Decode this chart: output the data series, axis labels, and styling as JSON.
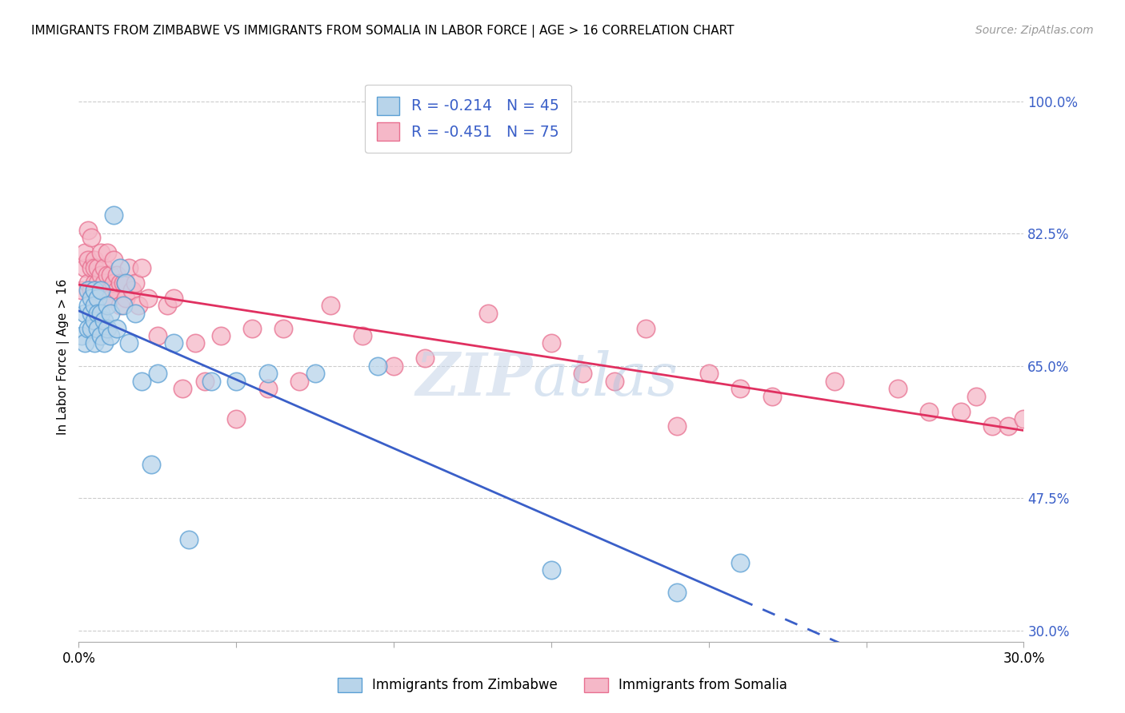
{
  "title": "IMMIGRANTS FROM ZIMBABWE VS IMMIGRANTS FROM SOMALIA IN LABOR FORCE | AGE > 16 CORRELATION CHART",
  "source": "Source: ZipAtlas.com",
  "ylabel": "In Labor Force | Age > 16",
  "xlim": [
    0.0,
    0.3
  ],
  "ylim": [
    0.285,
    1.04
  ],
  "yticks": [
    1.0,
    0.825,
    0.65,
    0.475,
    0.3
  ],
  "ytick_labels": [
    "100.0%",
    "82.5%",
    "65.0%",
    "47.5%",
    "30.0%"
  ],
  "xticks": [
    0.0,
    0.05,
    0.1,
    0.15,
    0.2,
    0.25,
    0.3
  ],
  "xtick_labels": [
    "0.0%",
    "",
    "",
    "",
    "",
    "",
    "30.0%"
  ],
  "zimbabwe_fill": "#b8d4ea",
  "zimbabwe_edge": "#5a9fd4",
  "somalia_fill": "#f5b8c8",
  "somalia_edge": "#e87090",
  "reg_blue": "#3a5fc8",
  "reg_pink": "#e03060",
  "R_zimbabwe": -0.214,
  "N_zimbabwe": 45,
  "R_somalia": -0.451,
  "N_somalia": 75,
  "watermark_zip": "ZIP",
  "watermark_atlas": "atlas",
  "zimbabwe_x": [
    0.001,
    0.002,
    0.002,
    0.003,
    0.003,
    0.003,
    0.004,
    0.004,
    0.004,
    0.005,
    0.005,
    0.005,
    0.005,
    0.006,
    0.006,
    0.006,
    0.007,
    0.007,
    0.007,
    0.008,
    0.008,
    0.009,
    0.009,
    0.01,
    0.01,
    0.011,
    0.012,
    0.013,
    0.014,
    0.015,
    0.016,
    0.018,
    0.02,
    0.023,
    0.025,
    0.03,
    0.035,
    0.042,
    0.05,
    0.06,
    0.075,
    0.095,
    0.15,
    0.19,
    0.21
  ],
  "zimbabwe_y": [
    0.69,
    0.72,
    0.68,
    0.75,
    0.73,
    0.7,
    0.74,
    0.72,
    0.7,
    0.75,
    0.73,
    0.71,
    0.68,
    0.74,
    0.72,
    0.7,
    0.75,
    0.72,
    0.69,
    0.71,
    0.68,
    0.73,
    0.7,
    0.72,
    0.69,
    0.85,
    0.7,
    0.78,
    0.73,
    0.76,
    0.68,
    0.72,
    0.63,
    0.52,
    0.64,
    0.68,
    0.42,
    0.63,
    0.63,
    0.64,
    0.64,
    0.65,
    0.38,
    0.35,
    0.39
  ],
  "somalia_x": [
    0.001,
    0.002,
    0.002,
    0.003,
    0.003,
    0.003,
    0.004,
    0.004,
    0.004,
    0.005,
    0.005,
    0.005,
    0.005,
    0.006,
    0.006,
    0.006,
    0.007,
    0.007,
    0.007,
    0.008,
    0.008,
    0.008,
    0.009,
    0.009,
    0.01,
    0.01,
    0.01,
    0.011,
    0.011,
    0.012,
    0.012,
    0.013,
    0.013,
    0.014,
    0.015,
    0.015,
    0.016,
    0.017,
    0.018,
    0.019,
    0.02,
    0.022,
    0.025,
    0.028,
    0.03,
    0.033,
    0.037,
    0.04,
    0.045,
    0.05,
    0.055,
    0.06,
    0.065,
    0.07,
    0.08,
    0.09,
    0.1,
    0.11,
    0.13,
    0.15,
    0.16,
    0.17,
    0.18,
    0.19,
    0.2,
    0.21,
    0.22,
    0.24,
    0.26,
    0.27,
    0.28,
    0.285,
    0.29,
    0.295,
    0.3
  ],
  "somalia_y": [
    0.75,
    0.78,
    0.8,
    0.79,
    0.76,
    0.83,
    0.78,
    0.75,
    0.82,
    0.79,
    0.76,
    0.75,
    0.78,
    0.76,
    0.74,
    0.78,
    0.75,
    0.8,
    0.77,
    0.74,
    0.78,
    0.76,
    0.77,
    0.8,
    0.77,
    0.75,
    0.74,
    0.79,
    0.76,
    0.77,
    0.75,
    0.76,
    0.73,
    0.76,
    0.74,
    0.76,
    0.78,
    0.75,
    0.76,
    0.73,
    0.78,
    0.74,
    0.69,
    0.73,
    0.74,
    0.62,
    0.68,
    0.63,
    0.69,
    0.58,
    0.7,
    0.62,
    0.7,
    0.63,
    0.73,
    0.69,
    0.65,
    0.66,
    0.72,
    0.68,
    0.64,
    0.63,
    0.7,
    0.57,
    0.64,
    0.62,
    0.61,
    0.63,
    0.62,
    0.59,
    0.59,
    0.61,
    0.57,
    0.57,
    0.58
  ]
}
